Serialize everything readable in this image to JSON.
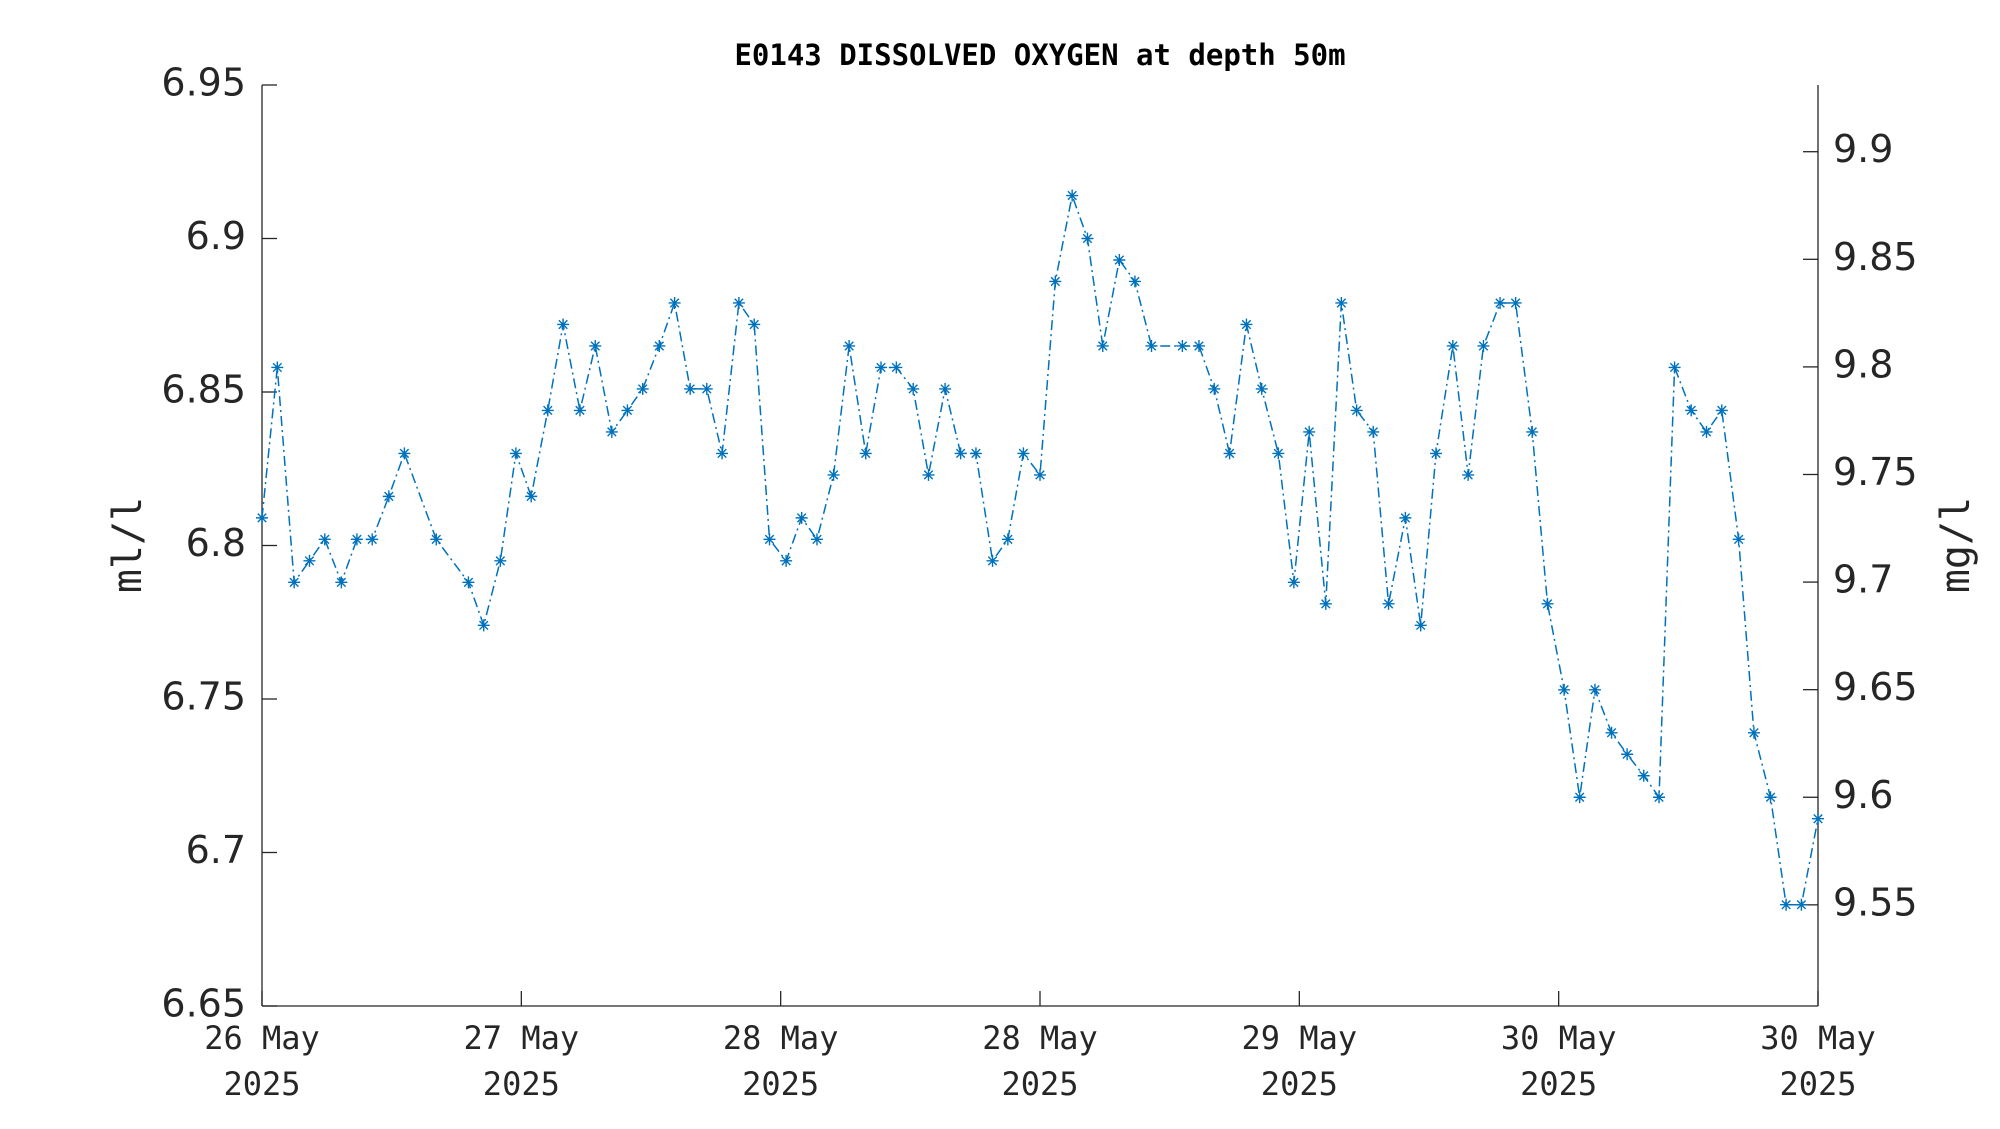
{
  "chart_data": {
    "type": "line",
    "title": "E0143 DISSOLVED OXYGEN at depth 50m",
    "ylabel": "ml/l",
    "y2label": "mg/l",
    "xlim": [
      0,
      6
    ],
    "xticks": [
      {
        "value": 0,
        "label": [
          "26 May",
          "2025"
        ]
      },
      {
        "value": 1,
        "label": [
          "27 May",
          "2025"
        ]
      },
      {
        "value": 2,
        "label": [
          "28 May",
          "2025"
        ]
      },
      {
        "value": 3,
        "label": [
          "28 May",
          "2025"
        ]
      },
      {
        "value": 4,
        "label": [
          "29 May",
          "2025"
        ]
      },
      {
        "value": 5,
        "label": [
          "30 May",
          "2025"
        ]
      },
      {
        "value": 6,
        "label": [
          "30 May",
          "2025"
        ]
      }
    ],
    "ylim": [
      6.65,
      6.95
    ],
    "yticks": [
      6.65,
      6.7,
      6.75,
      6.8,
      6.85,
      6.9,
      6.95
    ],
    "y2lim": [
      9.503,
      9.931
    ],
    "y2ticks": [
      9.55,
      9.6,
      9.65,
      9.7,
      9.75,
      9.8,
      9.85,
      9.9
    ],
    "grid": false,
    "series": [
      {
        "color": "#0072bd",
        "line_style": "dash-dot",
        "marker": "asterisk",
        "x": [
          0,
          0.059,
          0.124,
          0.183,
          0.242,
          0.306,
          0.366,
          0.425,
          0.489,
          0.549,
          0.672,
          0.796,
          0.855,
          0.919,
          0.979,
          1.038,
          1.102,
          1.161,
          1.226,
          1.285,
          1.349,
          1.409,
          1.468,
          1.532,
          1.591,
          1.651,
          1.715,
          1.774,
          1.839,
          1.898,
          1.957,
          2.021,
          2.081,
          2.14,
          2.204,
          2.264,
          2.328,
          2.387,
          2.446,
          2.511,
          2.57,
          2.634,
          2.694,
          2.753,
          2.817,
          2.876,
          2.936,
          3.0,
          3.059,
          3.124,
          3.183,
          3.242,
          3.306,
          3.366,
          3.43,
          3.549,
          3.613,
          3.672,
          3.731,
          3.796,
          3.855,
          3.919,
          3.979,
          4.038,
          4.102,
          4.162,
          4.221,
          4.285,
          4.344,
          4.409,
          4.468,
          4.527,
          4.592,
          4.651,
          4.71,
          4.774,
          4.834,
          4.898,
          4.957,
          5.021,
          5.081,
          5.14,
          5.204,
          5.264,
          5.328,
          5.387,
          5.447,
          5.511,
          5.57,
          5.629,
          5.694,
          5.753,
          5.817,
          5.877,
          5.936,
          6.0
        ],
        "values": [
          6.809,
          6.858,
          6.788,
          6.795,
          6.802,
          6.788,
          6.802,
          6.802,
          6.816,
          6.83,
          6.802,
          6.788,
          6.774,
          6.795,
          6.83,
          6.816,
          6.844,
          6.872,
          6.844,
          6.865,
          6.837,
          6.844,
          6.851,
          6.865,
          6.879,
          6.851,
          6.851,
          6.83,
          6.879,
          6.872,
          6.802,
          6.795,
          6.809,
          6.802,
          6.823,
          6.865,
          6.83,
          6.858,
          6.858,
          6.851,
          6.823,
          6.851,
          6.83,
          6.83,
          6.795,
          6.802,
          6.83,
          6.823,
          6.886,
          6.914,
          6.9,
          6.865,
          6.893,
          6.886,
          6.865,
          6.865,
          6.865,
          6.851,
          6.83,
          6.872,
          6.851,
          6.83,
          6.788,
          6.837,
          6.781,
          6.879,
          6.844,
          6.837,
          6.781,
          6.809,
          6.774,
          6.83,
          6.865,
          6.823,
          6.865,
          6.879,
          6.879,
          6.837,
          6.781,
          6.753,
          6.718,
          6.753,
          6.739,
          6.732,
          6.725,
          6.718,
          6.858,
          6.844,
          6.837,
          6.844,
          6.802,
          6.739,
          6.718,
          6.683,
          6.683,
          6.711
        ]
      }
    ]
  }
}
